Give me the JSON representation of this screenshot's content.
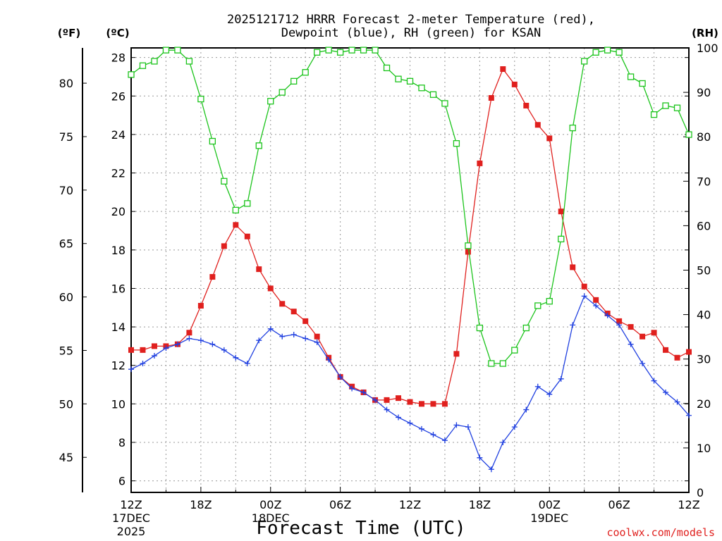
{
  "chart_data": {
    "type": "line",
    "title_line1": "2025121712 HRRR Forecast 2-meter Temperature (red),",
    "title_line2": "Dewpoint (blue), RH (green) for KSAN",
    "xlabel": "Forecast Time (UTC)",
    "credit": "coolwx.com/models",
    "units": {
      "fahrenheit": "(ºF)",
      "celsius": "(ºC)",
      "rh": "(RH)"
    },
    "x_ticks": [
      {
        "hour": 0,
        "label": "12Z",
        "sub1": "17DEC",
        "sub2": "2025"
      },
      {
        "hour": 6,
        "label": "18Z",
        "sub1": "",
        "sub2": ""
      },
      {
        "hour": 12,
        "label": "00Z",
        "sub1": "18DEC",
        "sub2": ""
      },
      {
        "hour": 18,
        "label": "06Z",
        "sub1": "",
        "sub2": ""
      },
      {
        "hour": 24,
        "label": "12Z",
        "sub1": "",
        "sub2": ""
      },
      {
        "hour": 30,
        "label": "18Z",
        "sub1": "",
        "sub2": ""
      },
      {
        "hour": 36,
        "label": "00Z",
        "sub1": "19DEC",
        "sub2": ""
      },
      {
        "hour": 42,
        "label": "06Z",
        "sub1": "",
        "sub2": ""
      },
      {
        "hour": 48,
        "label": "12Z",
        "sub1": "",
        "sub2": ""
      }
    ],
    "celsius_ylim": [
      5.4,
      28.5
    ],
    "celsius_ticks": [
      "6",
      "8",
      "10",
      "12",
      "14",
      "16",
      "18",
      "20",
      "22",
      "24",
      "26",
      "28"
    ],
    "fahrenheit_ticks": [
      "45",
      "50",
      "55",
      "60",
      "65",
      "70",
      "75",
      "80"
    ],
    "rh_ylim": [
      0,
      100
    ],
    "rh_ticks": [
      "0",
      "10",
      "20",
      "30",
      "40",
      "50",
      "60",
      "70",
      "80",
      "90",
      "100"
    ],
    "grid": true,
    "series": [
      {
        "name": "Temperature",
        "color": "#e0201e",
        "marker": "filled-square",
        "axis": "celsius",
        "values": [
          12.8,
          12.8,
          13.0,
          13.0,
          13.1,
          13.7,
          15.1,
          16.6,
          18.2,
          19.3,
          18.7,
          17.0,
          16.0,
          15.2,
          14.8,
          14.3,
          13.5,
          12.4,
          11.4,
          10.9,
          10.6,
          10.2,
          10.2,
          10.3,
          10.1,
          10.0,
          10.0,
          10.0,
          12.6,
          17.9,
          22.5,
          25.9,
          27.4,
          26.6,
          25.5,
          24.5,
          23.8,
          20.0,
          17.1,
          16.1,
          15.4,
          14.7,
          14.3,
          14.0,
          13.5,
          13.7,
          12.8,
          12.4,
          12.7
        ]
      },
      {
        "name": "Dewpoint",
        "color": "#2040e0",
        "marker": "plus",
        "axis": "celsius",
        "values": [
          11.8,
          12.1,
          12.5,
          12.9,
          13.1,
          13.4,
          13.3,
          13.1,
          12.8,
          12.4,
          12.1,
          13.3,
          13.9,
          13.5,
          13.6,
          13.4,
          13.2,
          12.3,
          11.4,
          10.8,
          10.6,
          10.2,
          9.7,
          9.3,
          9.0,
          8.7,
          8.4,
          8.1,
          8.9,
          8.8,
          7.2,
          6.6,
          8.0,
          8.8,
          9.7,
          10.9,
          10.5,
          11.3,
          14.1,
          15.6,
          15.1,
          14.6,
          14.1,
          13.1,
          12.1,
          11.2,
          10.6,
          10.1,
          9.4
        ]
      },
      {
        "name": "RH",
        "color": "#1cc41c",
        "marker": "open-square",
        "axis": "rh",
        "values": [
          94,
          96,
          97,
          99.5,
          99.5,
          97,
          88.5,
          79,
          70,
          63.5,
          65,
          78,
          88,
          90,
          92.5,
          94.5,
          99,
          99.5,
          99,
          99.5,
          99.5,
          99.5,
          95.5,
          93,
          92.5,
          91,
          89.5,
          87.5,
          78.5,
          55.5,
          37,
          29,
          29,
          32,
          37,
          42,
          43,
          57,
          82,
          97,
          99,
          99.5,
          99,
          93.5,
          92,
          85,
          87,
          86.5,
          80.5
        ]
      }
    ]
  }
}
